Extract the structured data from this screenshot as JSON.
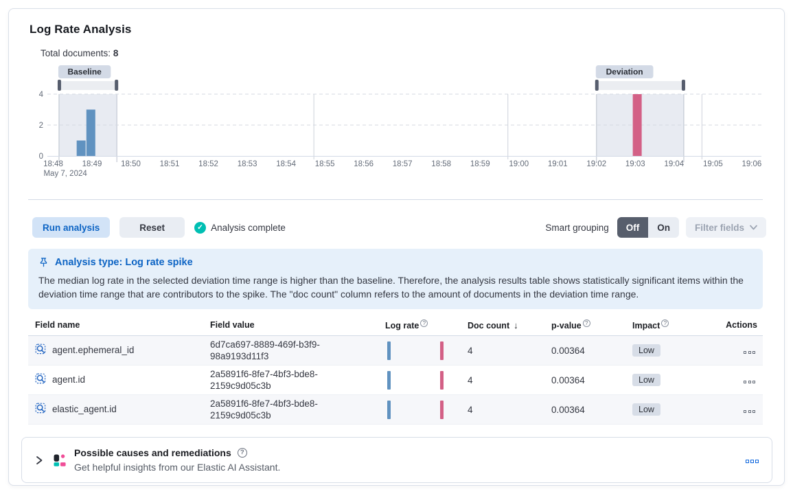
{
  "colors": {
    "primary": "#0b64dd",
    "bar_blue": "#6092C0",
    "bar_pink": "#D36086",
    "teal": "#00BFB3",
    "badge_bg": "#d3dae6",
    "region_fill": "#e8ebf2"
  },
  "header": {
    "title": "Log Rate Analysis"
  },
  "summary": {
    "label": "Total documents:",
    "value": "8"
  },
  "chart_data": {
    "type": "bar",
    "x_axis_date_label": "May 7, 2024",
    "x_tick_labels": [
      "18:48",
      "18:49",
      "18:50",
      "18:51",
      "18:52",
      "18:53",
      "18:54",
      "18:55",
      "18:56",
      "18:57",
      "18:58",
      "18:59",
      "19:00",
      "19:01",
      "19:02",
      "19:03",
      "19:04",
      "19:05",
      "19:06"
    ],
    "x_tick_start_minute": 48,
    "domain_min": [
      47.85,
      66.25
    ],
    "y_ticks": [
      0,
      2,
      4
    ],
    "ylim": [
      0,
      4
    ],
    "bars": [
      {
        "time": "18:48:45",
        "minute": 48.72,
        "value": 1,
        "series": "baseline"
      },
      {
        "time": "18:49:00",
        "minute": 48.97,
        "value": 3,
        "series": "baseline"
      },
      {
        "time": "19:03:00",
        "minute": 63.05,
        "value": 4,
        "series": "deviation"
      }
    ],
    "brushes": [
      {
        "label": "Baseline",
        "from_minute": 48.15,
        "to_minute": 49.64
      },
      {
        "label": "Deviation",
        "from_minute": 62.0,
        "to_minute": 64.25
      }
    ],
    "vertical_gridline_minutes": [
      55,
      60,
      65
    ]
  },
  "toolbar": {
    "run_button": "Run analysis",
    "reset_button": "Reset",
    "status": "Analysis complete",
    "smart_grouping_label": "Smart grouping",
    "toggle_off": "Off",
    "toggle_on": "On",
    "toggle_selected": "Off",
    "filter_fields_button": "Filter fields"
  },
  "callout": {
    "title": "Analysis type: Log rate spike",
    "body": "The median log rate in the selected deviation time range is higher than the baseline. Therefore, the analysis results table shows statistically significant items within the deviation time range that are contributors to the spike. The \"doc count\" column refers to the amount of documents in the deviation time range."
  },
  "table": {
    "columns": [
      "Field name",
      "Field value",
      "Log rate",
      "Doc count",
      "p-value",
      "Impact",
      "Actions"
    ],
    "sorted_column": "Doc count",
    "sort_direction": "desc",
    "info_columns": [
      "Log rate",
      "p-value",
      "Impact"
    ],
    "rows": [
      {
        "field_name": "agent.ephemeral_id",
        "field_value": "6d7ca697-8889-469f-b3f9-98a9193d11f3",
        "doc_count": "4",
        "p_value": "0.00364",
        "impact": "Low"
      },
      {
        "field_name": "agent.id",
        "field_value": "2a5891f6-8fe7-4bf3-bde8-2159c9d05c3b",
        "doc_count": "4",
        "p_value": "0.00364",
        "impact": "Low"
      },
      {
        "field_name": "elastic_agent.id",
        "field_value": "2a5891f6-8fe7-4bf3-bde8-2159c9d05c3b",
        "doc_count": "4",
        "p_value": "0.00364",
        "impact": "Low"
      }
    ]
  },
  "footer": {
    "title": "Possible causes and remediations",
    "subtitle": "Get helpful insights from our Elastic AI Assistant."
  }
}
